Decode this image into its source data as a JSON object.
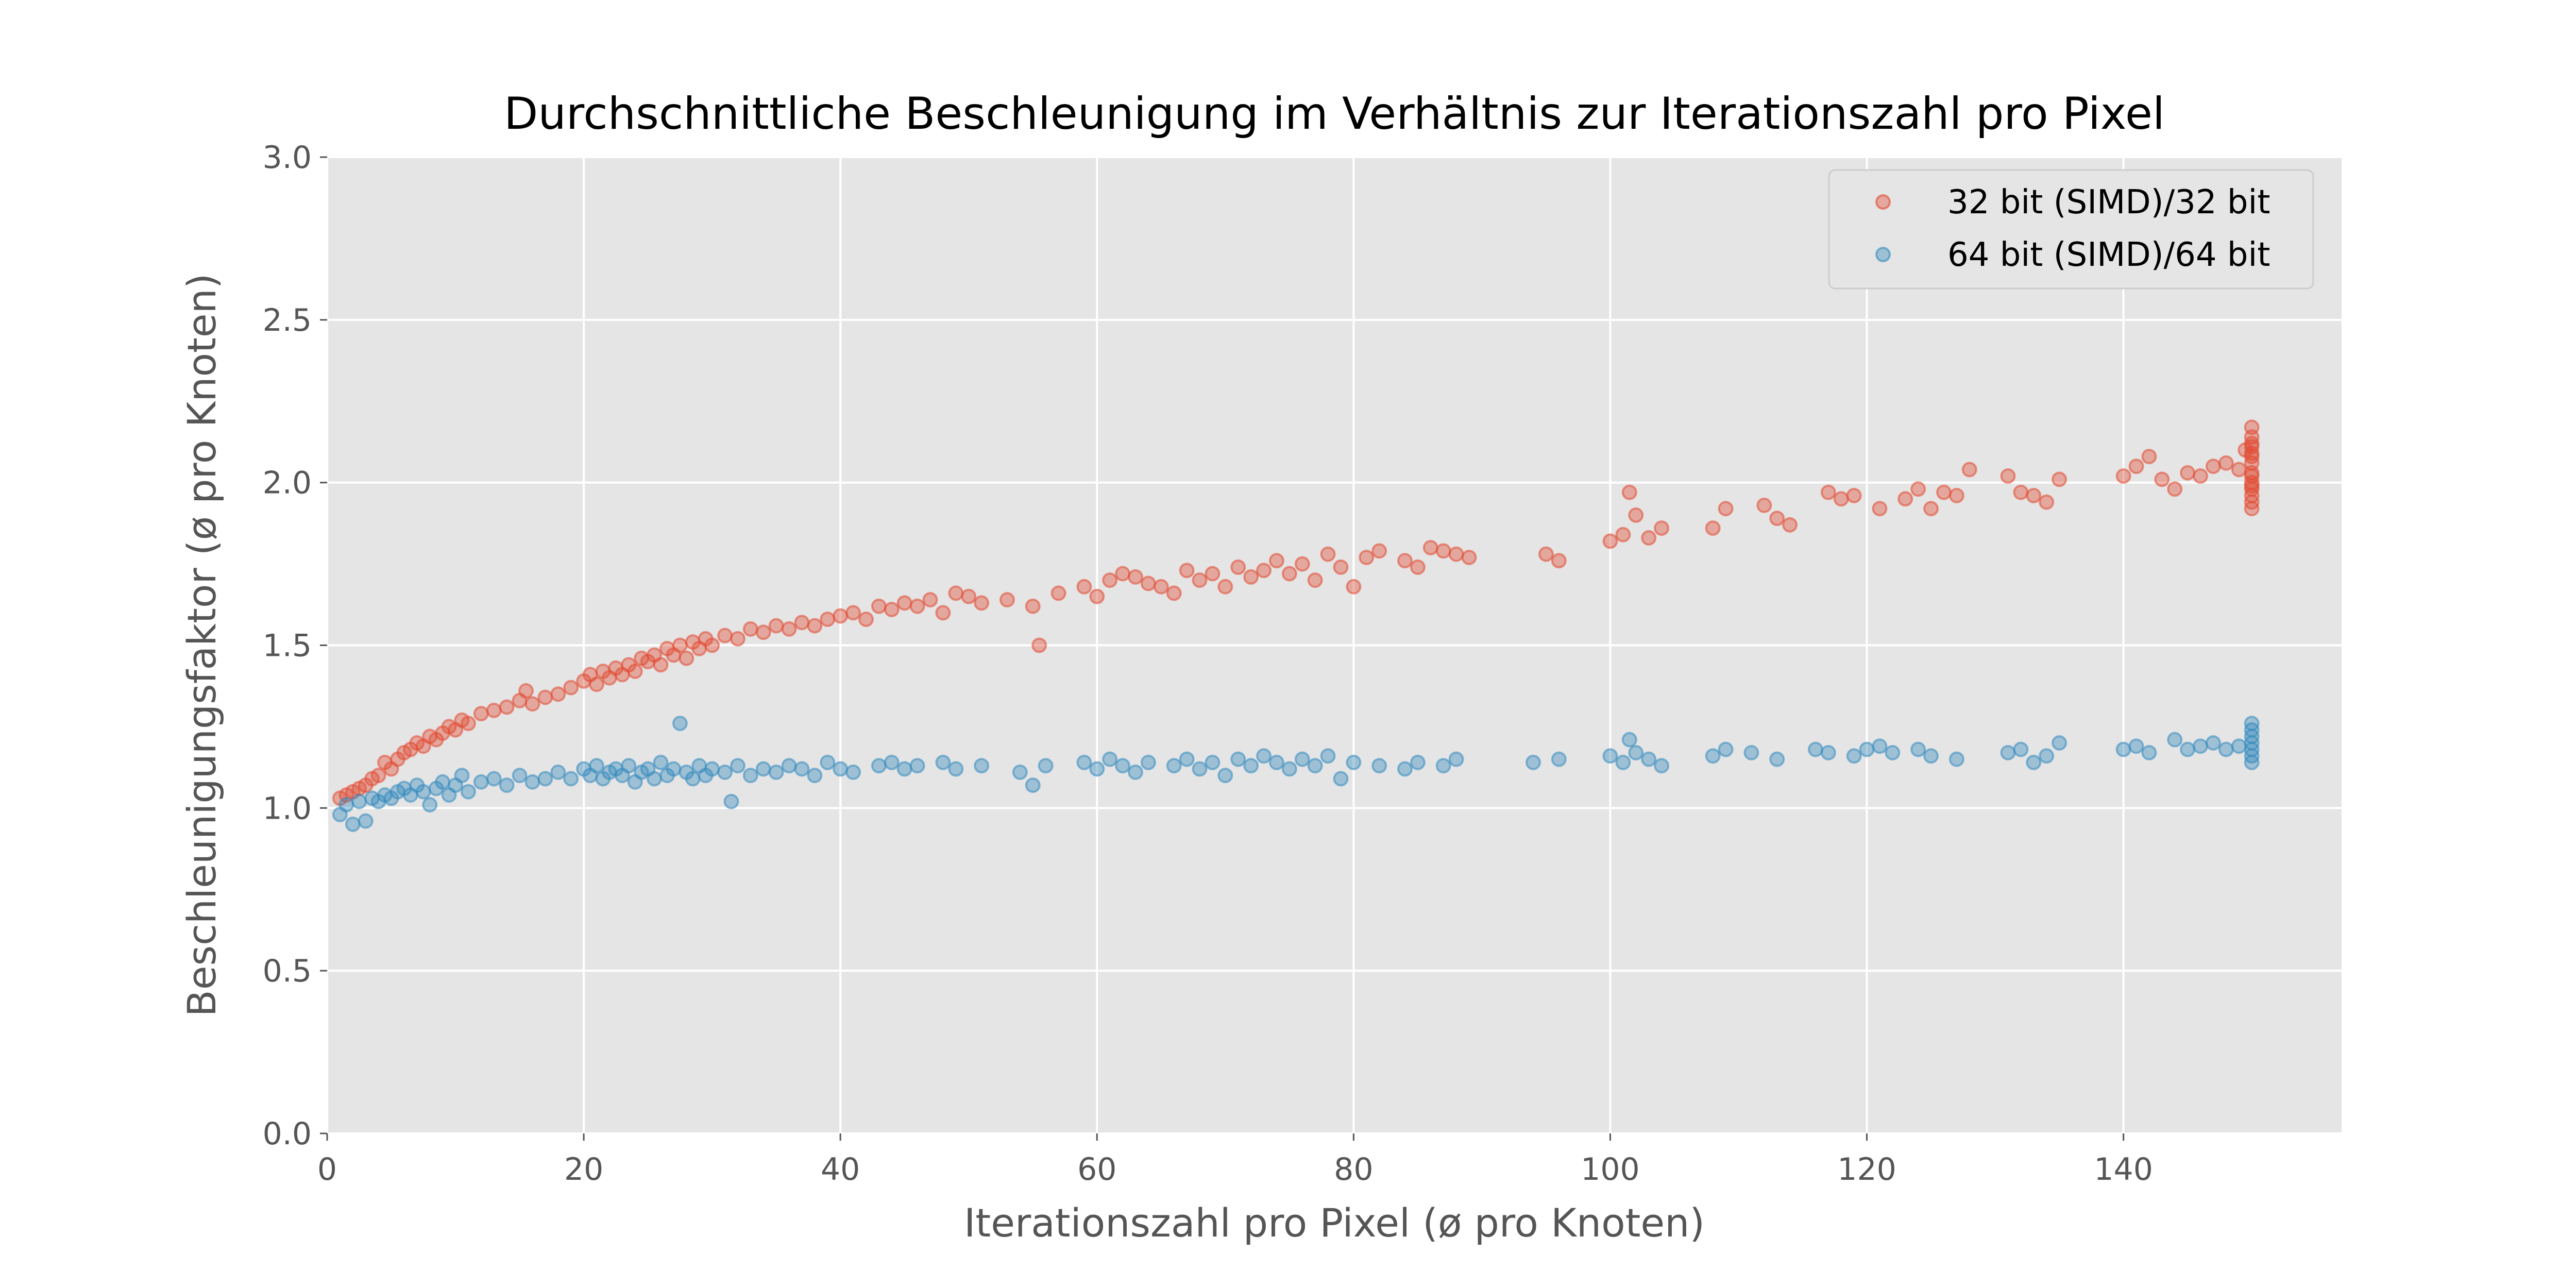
{
  "chart_data": {
    "type": "scatter",
    "title": "Durchschnittliche Beschleunigung im Verhältnis zur Iterationszahl pro Pixel",
    "xlabel": "Iterationszahl pro Pixel (ø pro Knoten)",
    "ylabel": "Beschleunigungsfaktor (ø pro Knoten)",
    "xlim": [
      0,
      157
    ],
    "ylim": [
      0,
      3.0
    ],
    "xticks": [
      0,
      20,
      40,
      60,
      80,
      100,
      120,
      140
    ],
    "yticks": [
      0.0,
      0.5,
      1.0,
      1.5,
      2.0,
      2.5,
      3.0
    ],
    "ytick_labels": [
      "0.0",
      "0.5",
      "1.0",
      "1.5",
      "2.0",
      "2.5",
      "3.0"
    ],
    "grid": true,
    "legend_position": "top-right",
    "colors": {
      "background": "#e5e5e5",
      "grid": "#ffffff",
      "series_32": "#e24a33",
      "series_64": "#348abd"
    },
    "series": [
      {
        "name": "32 bit (SIMD)/32 bit",
        "color": "#e24a33",
        "points": [
          [
            1.0,
            1.03
          ],
          [
            1.5,
            1.04
          ],
          [
            2.0,
            1.05
          ],
          [
            2.5,
            1.06
          ],
          [
            3.0,
            1.07
          ],
          [
            3.5,
            1.09
          ],
          [
            4.0,
            1.1
          ],
          [
            4.5,
            1.14
          ],
          [
            5.0,
            1.12
          ],
          [
            5.5,
            1.15
          ],
          [
            6.0,
            1.17
          ],
          [
            6.5,
            1.18
          ],
          [
            7.0,
            1.2
          ],
          [
            7.5,
            1.19
          ],
          [
            8.0,
            1.22
          ],
          [
            8.5,
            1.21
          ],
          [
            9.0,
            1.23
          ],
          [
            9.5,
            1.25
          ],
          [
            10.0,
            1.24
          ],
          [
            10.5,
            1.27
          ],
          [
            11.0,
            1.26
          ],
          [
            12.0,
            1.29
          ],
          [
            13.0,
            1.3
          ],
          [
            14.0,
            1.31
          ],
          [
            15.0,
            1.33
          ],
          [
            15.5,
            1.36
          ],
          [
            16.0,
            1.32
          ],
          [
            17.0,
            1.34
          ],
          [
            18.0,
            1.35
          ],
          [
            19.0,
            1.37
          ],
          [
            20.0,
            1.39
          ],
          [
            20.5,
            1.41
          ],
          [
            21.0,
            1.38
          ],
          [
            21.5,
            1.42
          ],
          [
            22.0,
            1.4
          ],
          [
            22.5,
            1.43
          ],
          [
            23.0,
            1.41
          ],
          [
            23.5,
            1.44
          ],
          [
            24.0,
            1.42
          ],
          [
            24.5,
            1.46
          ],
          [
            25.0,
            1.45
          ],
          [
            25.5,
            1.47
          ],
          [
            26.0,
            1.44
          ],
          [
            26.5,
            1.49
          ],
          [
            27.0,
            1.47
          ],
          [
            27.5,
            1.5
          ],
          [
            28.0,
            1.46
          ],
          [
            28.5,
            1.51
          ],
          [
            29.0,
            1.49
          ],
          [
            29.5,
            1.52
          ],
          [
            30.0,
            1.5
          ],
          [
            31.0,
            1.53
          ],
          [
            32.0,
            1.52
          ],
          [
            33.0,
            1.55
          ],
          [
            34.0,
            1.54
          ],
          [
            35.0,
            1.56
          ],
          [
            36.0,
            1.55
          ],
          [
            37.0,
            1.57
          ],
          [
            38.0,
            1.56
          ],
          [
            39.0,
            1.58
          ],
          [
            40.0,
            1.59
          ],
          [
            41.0,
            1.6
          ],
          [
            42.0,
            1.58
          ],
          [
            43.0,
            1.62
          ],
          [
            44.0,
            1.61
          ],
          [
            45.0,
            1.63
          ],
          [
            46.0,
            1.62
          ],
          [
            47.0,
            1.64
          ],
          [
            48.0,
            1.6
          ],
          [
            49.0,
            1.66
          ],
          [
            50.0,
            1.65
          ],
          [
            51.0,
            1.63
          ],
          [
            53.0,
            1.64
          ],
          [
            55.0,
            1.62
          ],
          [
            55.5,
            1.5
          ],
          [
            57.0,
            1.66
          ],
          [
            59.0,
            1.68
          ],
          [
            60.0,
            1.65
          ],
          [
            61.0,
            1.7
          ],
          [
            62.0,
            1.72
          ],
          [
            63.0,
            1.71
          ],
          [
            64.0,
            1.69
          ],
          [
            65.0,
            1.68
          ],
          [
            66.0,
            1.66
          ],
          [
            67.0,
            1.73
          ],
          [
            68.0,
            1.7
          ],
          [
            69.0,
            1.72
          ],
          [
            70.0,
            1.68
          ],
          [
            71.0,
            1.74
          ],
          [
            72.0,
            1.71
          ],
          [
            73.0,
            1.73
          ],
          [
            74.0,
            1.76
          ],
          [
            75.0,
            1.72
          ],
          [
            76.0,
            1.75
          ],
          [
            77.0,
            1.7
          ],
          [
            78.0,
            1.78
          ],
          [
            79.0,
            1.74
          ],
          [
            80.0,
            1.68
          ],
          [
            81.0,
            1.77
          ],
          [
            82.0,
            1.79
          ],
          [
            84.0,
            1.76
          ],
          [
            85.0,
            1.74
          ],
          [
            86.0,
            1.8
          ],
          [
            87.0,
            1.79
          ],
          [
            88.0,
            1.78
          ],
          [
            89.0,
            1.77
          ],
          [
            95.0,
            1.78
          ],
          [
            96.0,
            1.76
          ],
          [
            100.0,
            1.82
          ],
          [
            101.0,
            1.84
          ],
          [
            101.5,
            1.97
          ],
          [
            102.0,
            1.9
          ],
          [
            103.0,
            1.83
          ],
          [
            104.0,
            1.86
          ],
          [
            108.0,
            1.86
          ],
          [
            109.0,
            1.92
          ],
          [
            112.0,
            1.93
          ],
          [
            113.0,
            1.89
          ],
          [
            114.0,
            1.87
          ],
          [
            117.0,
            1.97
          ],
          [
            118.0,
            1.95
          ],
          [
            119.0,
            1.96
          ],
          [
            121.0,
            1.92
          ],
          [
            123.0,
            1.95
          ],
          [
            124.0,
            1.98
          ],
          [
            125.0,
            1.92
          ],
          [
            126.0,
            1.97
          ],
          [
            127.0,
            1.96
          ],
          [
            128.0,
            2.04
          ],
          [
            131.0,
            2.02
          ],
          [
            132.0,
            1.97
          ],
          [
            133.0,
            1.96
          ],
          [
            134.0,
            1.94
          ],
          [
            135.0,
            2.01
          ],
          [
            140.0,
            2.02
          ],
          [
            141.0,
            2.05
          ],
          [
            142.0,
            2.08
          ],
          [
            143.0,
            2.01
          ],
          [
            144.0,
            1.98
          ],
          [
            145.0,
            2.03
          ],
          [
            146.0,
            2.02
          ],
          [
            147.0,
            2.05
          ],
          [
            148.0,
            2.06
          ],
          [
            149.0,
            2.04
          ],
          [
            149.5,
            2.1
          ],
          [
            150.0,
            2.17
          ],
          [
            150.0,
            2.14
          ],
          [
            150.0,
            2.11
          ],
          [
            150.0,
            2.08
          ],
          [
            150.0,
            2.06
          ],
          [
            150.0,
            2.03
          ],
          [
            150.0,
            2.0
          ],
          [
            150.0,
            1.98
          ],
          [
            150.0,
            1.96
          ],
          [
            150.0,
            1.94
          ],
          [
            150.0,
            1.92
          ],
          [
            150.0,
            2.12
          ],
          [
            150.0,
            2.09
          ],
          [
            150.0,
            2.02
          ],
          [
            150.0,
            1.99
          ]
        ]
      },
      {
        "name": "64 bit (SIMD)/64 bit",
        "color": "#348abd",
        "points": [
          [
            1.0,
            0.98
          ],
          [
            1.5,
            1.01
          ],
          [
            2.0,
            0.95
          ],
          [
            2.5,
            1.02
          ],
          [
            3.0,
            0.96
          ],
          [
            3.5,
            1.03
          ],
          [
            4.0,
            1.02
          ],
          [
            4.5,
            1.04
          ],
          [
            5.0,
            1.03
          ],
          [
            5.5,
            1.05
          ],
          [
            6.0,
            1.06
          ],
          [
            6.5,
            1.04
          ],
          [
            7.0,
            1.07
          ],
          [
            7.5,
            1.05
          ],
          [
            8.0,
            1.01
          ],
          [
            8.5,
            1.06
          ],
          [
            9.0,
            1.08
          ],
          [
            9.5,
            1.04
          ],
          [
            10.0,
            1.07
          ],
          [
            10.5,
            1.1
          ],
          [
            11.0,
            1.05
          ],
          [
            12.0,
            1.08
          ],
          [
            13.0,
            1.09
          ],
          [
            14.0,
            1.07
          ],
          [
            15.0,
            1.1
          ],
          [
            16.0,
            1.08
          ],
          [
            17.0,
            1.09
          ],
          [
            18.0,
            1.11
          ],
          [
            19.0,
            1.09
          ],
          [
            20.0,
            1.12
          ],
          [
            20.5,
            1.1
          ],
          [
            21.0,
            1.13
          ],
          [
            21.5,
            1.09
          ],
          [
            22.0,
            1.11
          ],
          [
            22.5,
            1.12
          ],
          [
            23.0,
            1.1
          ],
          [
            23.5,
            1.13
          ],
          [
            24.0,
            1.08
          ],
          [
            24.5,
            1.11
          ],
          [
            25.0,
            1.12
          ],
          [
            25.5,
            1.09
          ],
          [
            26.0,
            1.14
          ],
          [
            26.5,
            1.1
          ],
          [
            27.0,
            1.12
          ],
          [
            27.5,
            1.26
          ],
          [
            28.0,
            1.11
          ],
          [
            28.5,
            1.09
          ],
          [
            29.0,
            1.13
          ],
          [
            29.5,
            1.1
          ],
          [
            30.0,
            1.12
          ],
          [
            31.0,
            1.11
          ],
          [
            31.5,
            1.02
          ],
          [
            32.0,
            1.13
          ],
          [
            33.0,
            1.1
          ],
          [
            34.0,
            1.12
          ],
          [
            35.0,
            1.11
          ],
          [
            36.0,
            1.13
          ],
          [
            37.0,
            1.12
          ],
          [
            38.0,
            1.1
          ],
          [
            39.0,
            1.14
          ],
          [
            40.0,
            1.12
          ],
          [
            41.0,
            1.11
          ],
          [
            43.0,
            1.13
          ],
          [
            44.0,
            1.14
          ],
          [
            45.0,
            1.12
          ],
          [
            46.0,
            1.13
          ],
          [
            48.0,
            1.14
          ],
          [
            49.0,
            1.12
          ],
          [
            51.0,
            1.13
          ],
          [
            54.0,
            1.11
          ],
          [
            55.0,
            1.07
          ],
          [
            56.0,
            1.13
          ],
          [
            59.0,
            1.14
          ],
          [
            60.0,
            1.12
          ],
          [
            61.0,
            1.15
          ],
          [
            62.0,
            1.13
          ],
          [
            63.0,
            1.11
          ],
          [
            64.0,
            1.14
          ],
          [
            66.0,
            1.13
          ],
          [
            67.0,
            1.15
          ],
          [
            68.0,
            1.12
          ],
          [
            69.0,
            1.14
          ],
          [
            70.0,
            1.1
          ],
          [
            71.0,
            1.15
          ],
          [
            72.0,
            1.13
          ],
          [
            73.0,
            1.16
          ],
          [
            74.0,
            1.14
          ],
          [
            75.0,
            1.12
          ],
          [
            76.0,
            1.15
          ],
          [
            77.0,
            1.13
          ],
          [
            78.0,
            1.16
          ],
          [
            79.0,
            1.09
          ],
          [
            80.0,
            1.14
          ],
          [
            82.0,
            1.13
          ],
          [
            84.0,
            1.12
          ],
          [
            85.0,
            1.14
          ],
          [
            87.0,
            1.13
          ],
          [
            88.0,
            1.15
          ],
          [
            94.0,
            1.14
          ],
          [
            96.0,
            1.15
          ],
          [
            100.0,
            1.16
          ],
          [
            101.0,
            1.14
          ],
          [
            101.5,
            1.21
          ],
          [
            102.0,
            1.17
          ],
          [
            103.0,
            1.15
          ],
          [
            104.0,
            1.13
          ],
          [
            108.0,
            1.16
          ],
          [
            109.0,
            1.18
          ],
          [
            111.0,
            1.17
          ],
          [
            113.0,
            1.15
          ],
          [
            116.0,
            1.18
          ],
          [
            117.0,
            1.17
          ],
          [
            119.0,
            1.16
          ],
          [
            120.0,
            1.18
          ],
          [
            121.0,
            1.19
          ],
          [
            122.0,
            1.17
          ],
          [
            124.0,
            1.18
          ],
          [
            125.0,
            1.16
          ],
          [
            127.0,
            1.15
          ],
          [
            131.0,
            1.17
          ],
          [
            132.0,
            1.18
          ],
          [
            133.0,
            1.14
          ],
          [
            134.0,
            1.16
          ],
          [
            135.0,
            1.2
          ],
          [
            140.0,
            1.18
          ],
          [
            141.0,
            1.19
          ],
          [
            142.0,
            1.17
          ],
          [
            144.0,
            1.21
          ],
          [
            145.0,
            1.18
          ],
          [
            146.0,
            1.19
          ],
          [
            147.0,
            1.2
          ],
          [
            148.0,
            1.18
          ],
          [
            149.0,
            1.19
          ],
          [
            150.0,
            1.26
          ],
          [
            150.0,
            1.24
          ],
          [
            150.0,
            1.22
          ],
          [
            150.0,
            1.2
          ],
          [
            150.0,
            1.18
          ],
          [
            150.0,
            1.16
          ],
          [
            150.0,
            1.14
          ]
        ]
      }
    ]
  }
}
